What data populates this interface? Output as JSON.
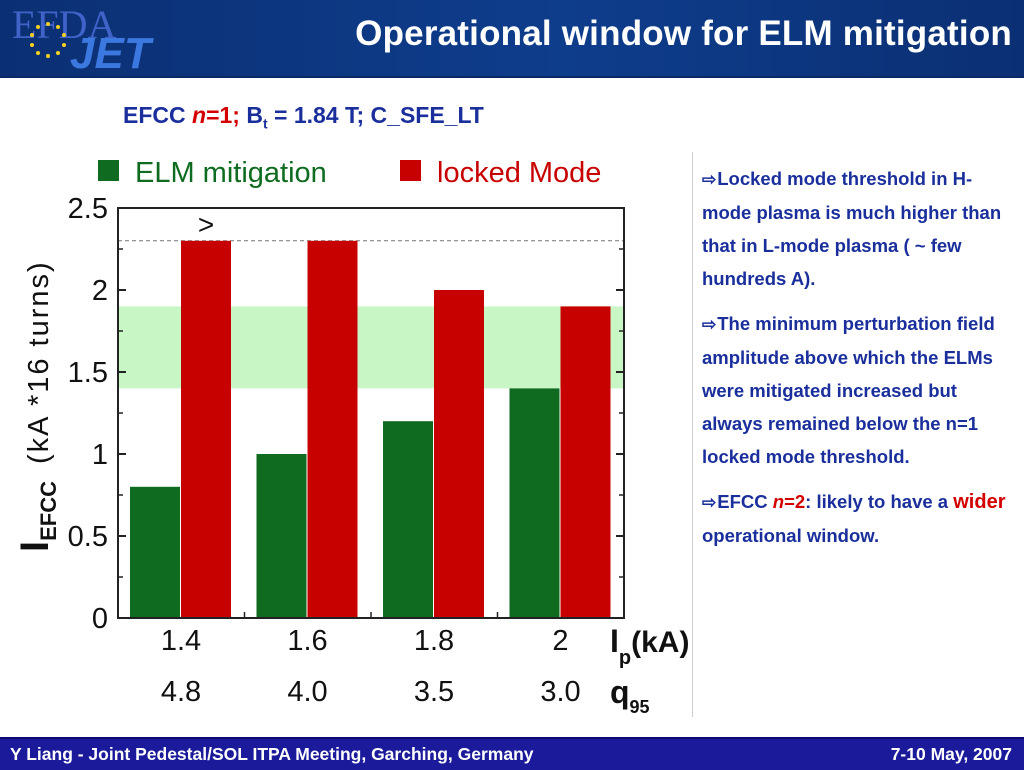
{
  "header": {
    "logo_efda": "EFDA",
    "logo_jet": "JET",
    "title": "Operational window for ELM mitigation"
  },
  "subtitle": {
    "prefix": "EFCC ",
    "n": "n",
    "n_value": "=1;",
    "b": " B",
    "b_sub": "t",
    "rest": " = 1.84 T; C_SFE_LT"
  },
  "colors": {
    "green": "#0e6b1f",
    "red": "#c70000",
    "band": "#c8f7c5",
    "text_blue": "#1a2f9c",
    "accent_red": "#d40000"
  },
  "chart_data": {
    "type": "bar",
    "categories": [
      "1.4",
      "1.6",
      "1.8",
      "2"
    ],
    "secondary_categories": [
      "4.8",
      "4.0",
      "3.5",
      "3.0"
    ],
    "series": [
      {
        "name": "ELM mitigation",
        "color": "#0e6b1f",
        "values": [
          0.8,
          1.0,
          1.2,
          1.4
        ]
      },
      {
        "name": "locked Mode",
        "color": "#c70000",
        "values": [
          2.3,
          2.3,
          2.0,
          1.9
        ]
      }
    ],
    "ylim": [
      0,
      2.5
    ],
    "yticks": [
      "0",
      "0.5",
      "1",
      "1.5",
      "2",
      "2.5"
    ],
    "ylabel_main": "I",
    "ylabel_sub": "EFCC",
    "ylabel_units": "(kA *16 turns)",
    "xlabel_main": "I",
    "xlabel_sub": "p",
    "xlabel_units": "(kA)",
    "x2label_main": "q",
    "x2label_sub": "95",
    "band": [
      1.4,
      1.9
    ],
    "dashed_line": 2.3,
    "annotation": ">",
    "legend_position": "top"
  },
  "notes": [
    {
      "text": "Locked mode threshold in H-mode plasma is much higher than that in L-mode plasma ( ~ few hundreds A)."
    },
    {
      "text": "The minimum perturbation field amplitude above which the ELMs were mitigated increased but always remained below the n=1 locked mode threshold."
    }
  ],
  "note3": {
    "prefix": "EFCC ",
    "n": "n",
    "n_value": "=2",
    "mid": ": likely to have a ",
    "wider": "wider",
    "suffix": " operational window."
  },
  "footer": {
    "left": "Y Liang - Joint Pedestal/SOL ITPA Meeting, Garching, Germany",
    "right": "7-10 May, 2007"
  }
}
